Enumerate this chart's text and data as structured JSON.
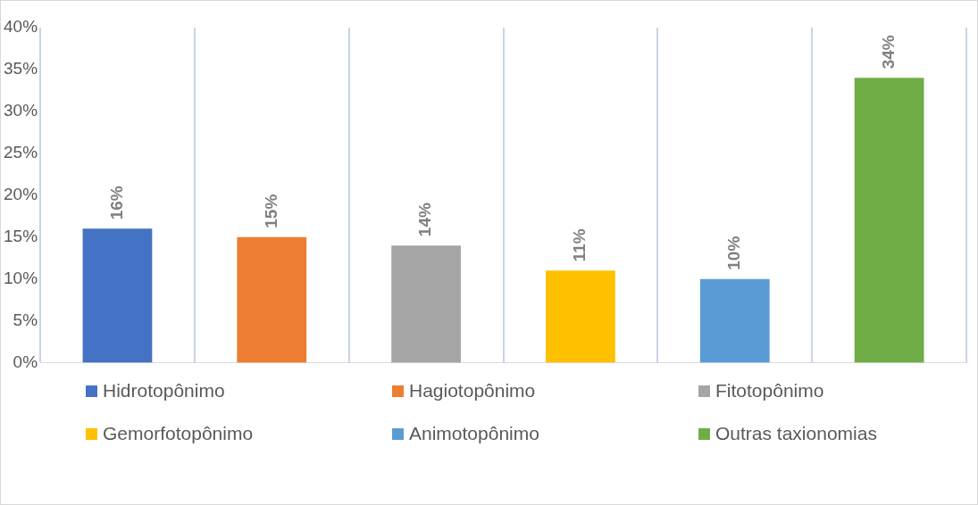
{
  "chart_data": {
    "type": "bar",
    "categories": [
      null,
      null,
      null,
      null,
      null,
      null
    ],
    "series": [
      {
        "name": "Hidrotopônimo",
        "color": "#4472c4",
        "values": [
          16,
          null,
          null,
          null,
          null,
          null
        ],
        "value_labels": [
          "16%",
          null,
          null,
          null,
          null,
          null
        ]
      },
      {
        "name": "Hagiotopônimo",
        "color": "#ed7d31",
        "values": [
          null,
          15,
          null,
          null,
          null,
          null
        ],
        "value_labels": [
          null,
          "15%",
          null,
          null,
          null,
          null
        ]
      },
      {
        "name": "Fitotopônimo",
        "color": "#a5a5a5",
        "values": [
          null,
          null,
          14,
          null,
          null,
          null
        ],
        "value_labels": [
          null,
          null,
          "14%",
          null,
          null,
          null
        ]
      },
      {
        "name": "Gemorfotopônimo",
        "color": "#ffc000",
        "values": [
          null,
          null,
          null,
          11,
          null,
          null
        ],
        "value_labels": [
          null,
          null,
          null,
          "11%",
          null,
          null
        ]
      },
      {
        "name": "Animotopônimo",
        "color": "#5b9bd5",
        "values": [
          null,
          null,
          null,
          null,
          10,
          null
        ],
        "value_labels": [
          null,
          null,
          null,
          null,
          "10%",
          null
        ]
      },
      {
        "name": "Outras taxionomias",
        "color": "#70ad47",
        "values": [
          null,
          null,
          null,
          null,
          null,
          34
        ],
        "value_labels": [
          null,
          null,
          null,
          null,
          null,
          "34%"
        ]
      }
    ],
    "ylim": [
      0,
      40
    ],
    "yticks": [
      {
        "value": 0,
        "label": "0%"
      },
      {
        "value": 5,
        "label": "5%"
      },
      {
        "value": 10,
        "label": "10%"
      },
      {
        "value": 15,
        "label": "15%"
      },
      {
        "value": 20,
        "label": "20%"
      },
      {
        "value": 25,
        "label": "25%"
      },
      {
        "value": 30,
        "label": "30%"
      },
      {
        "value": 35,
        "label": "35%"
      },
      {
        "value": 40,
        "label": "40%"
      }
    ],
    "grid": "x",
    "legend": "bottom",
    "tick_labels": "y"
  }
}
